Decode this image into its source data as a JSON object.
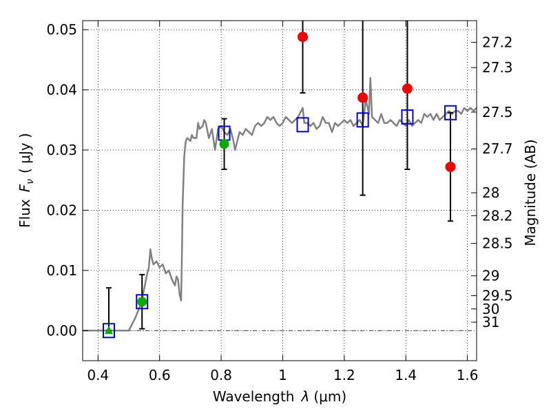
{
  "chart_data": {
    "type": "scatter",
    "xlabel_prefix": "Wavelength",
    "xlabel_symbol": "λ",
    "xlabel_unit": "(μm)",
    "ylabel_prefix": "Flux",
    "ylabel_symbol": "F",
    "ylabel_subscript": "ν",
    "ylabel_unit": "( μJy )",
    "y2label": "Magnitude (AB)",
    "xlim": [
      0.35,
      1.63
    ],
    "ylim": [
      -0.005,
      0.0515
    ],
    "xticks": [
      0.4,
      0.6,
      0.8,
      1.0,
      1.2,
      1.4,
      1.6
    ],
    "xtick_labels": [
      "0.4",
      "0.6",
      "0.8",
      "1",
      "1.2",
      "1.4",
      "1.6"
    ],
    "yticks": [
      0.0,
      0.01,
      0.02,
      0.03,
      0.04,
      0.05
    ],
    "ytick_labels": [
      "0.00",
      "0.01",
      "0.02",
      "0.03",
      "0.04",
      "0.05"
    ],
    "y2ticks": [
      {
        "label": "27.2",
        "flux": 0.0479
      },
      {
        "label": "27.3",
        "flux": 0.0437
      },
      {
        "label": "27.5",
        "flux": 0.0363
      },
      {
        "label": "27.7",
        "flux": 0.0302
      },
      {
        "label": "28",
        "flux": 0.0229
      },
      {
        "label": "28.2",
        "flux": 0.0191
      },
      {
        "label": "28.5",
        "flux": 0.0145
      },
      {
        "label": "29",
        "flux": 0.0091
      },
      {
        "label": "29.5",
        "flux": 0.0058
      },
      {
        "label": "30",
        "flux": 0.0036
      },
      {
        "label": "31",
        "flux": 0.0014
      }
    ],
    "grid": true,
    "zero_line": true,
    "colors": {
      "model": "#808080",
      "model_points": "#0000cc",
      "detections": "#00aa00",
      "upper_limits": "#ee0000",
      "errorbars": "#000000"
    },
    "series": [
      {
        "name": "model_spectrum",
        "style": "line",
        "x": [
          0.35,
          0.4,
          0.45,
          0.5,
          0.52,
          0.54,
          0.55,
          0.56,
          0.565,
          0.57,
          0.575,
          0.58,
          0.59,
          0.6,
          0.61,
          0.62,
          0.63,
          0.64,
          0.65,
          0.655,
          0.66,
          0.665,
          0.67,
          0.672,
          0.675,
          0.68,
          0.685,
          0.69,
          0.7,
          0.705,
          0.71,
          0.72,
          0.725,
          0.73,
          0.74,
          0.745,
          0.75,
          0.76,
          0.77,
          0.78,
          0.79,
          0.8,
          0.81,
          0.82,
          0.83,
          0.84,
          0.845,
          0.85,
          0.86,
          0.87,
          0.88,
          0.89,
          0.9,
          0.91,
          0.92,
          0.93,
          0.94,
          0.95,
          0.96,
          0.97,
          0.98,
          0.99,
          1.0,
          1.01,
          1.02,
          1.03,
          1.04,
          1.05,
          1.06,
          1.065,
          1.07,
          1.08,
          1.09,
          1.1,
          1.11,
          1.12,
          1.13,
          1.14,
          1.15,
          1.16,
          1.17,
          1.18,
          1.19,
          1.2,
          1.21,
          1.22,
          1.23,
          1.24,
          1.25,
          1.26,
          1.27,
          1.28,
          1.285,
          1.29,
          1.3,
          1.31,
          1.32,
          1.33,
          1.34,
          1.35,
          1.36,
          1.37,
          1.38,
          1.39,
          1.4,
          1.41,
          1.42,
          1.43,
          1.44,
          1.45,
          1.46,
          1.47,
          1.48,
          1.49,
          1.5,
          1.51,
          1.52,
          1.53,
          1.54,
          1.55,
          1.56,
          1.57,
          1.58,
          1.59,
          1.6,
          1.61,
          1.62,
          1.63
        ],
        "y": [
          0.0,
          0.0,
          0.0,
          0.0,
          0.002,
          0.0045,
          0.007,
          0.0095,
          0.0105,
          0.0135,
          0.012,
          0.011,
          0.0115,
          0.0105,
          0.011,
          0.0095,
          0.01,
          0.0085,
          0.0075,
          0.009,
          0.0085,
          0.006,
          0.005,
          0.011,
          0.021,
          0.029,
          0.0315,
          0.032,
          0.0315,
          0.0325,
          0.032,
          0.032,
          0.0345,
          0.0335,
          0.034,
          0.035,
          0.0345,
          0.032,
          0.0335,
          0.03,
          0.0335,
          0.034,
          0.033,
          0.0325,
          0.0335,
          0.0315,
          0.03,
          0.031,
          0.033,
          0.0325,
          0.0335,
          0.033,
          0.0325,
          0.034,
          0.0345,
          0.034,
          0.0345,
          0.0355,
          0.035,
          0.0355,
          0.0345,
          0.034,
          0.0345,
          0.0355,
          0.035,
          0.0345,
          0.035,
          0.0355,
          0.0365,
          0.037,
          0.0345,
          0.0345,
          0.034,
          0.0345,
          0.0335,
          0.034,
          0.0355,
          0.0345,
          0.0345,
          0.033,
          0.0345,
          0.034,
          0.0345,
          0.035,
          0.0345,
          0.035,
          0.034,
          0.0345,
          0.035,
          0.034,
          0.0385,
          0.036,
          0.042,
          0.0355,
          0.035,
          0.0345,
          0.036,
          0.0345,
          0.0345,
          0.035,
          0.0345,
          0.034,
          0.035,
          0.0345,
          0.034,
          0.035,
          0.034,
          0.0345,
          0.035,
          0.0345,
          0.036,
          0.0355,
          0.036,
          0.035,
          0.036,
          0.035,
          0.0355,
          0.036,
          0.0365,
          0.036,
          0.0365,
          0.0365,
          0.036,
          0.037,
          0.0365,
          0.037,
          0.0365,
          0.037
        ]
      },
      {
        "name": "model_photometry",
        "style": "open-square",
        "x": [
          0.435,
          0.543,
          0.81,
          1.065,
          1.26,
          1.405,
          1.545
        ],
        "y": [
          0.0,
          0.0048,
          0.0328,
          0.0342,
          0.035,
          0.0355,
          0.0362
        ]
      },
      {
        "name": "detections",
        "style": "filled-circle",
        "x": [
          0.543,
          0.81
        ],
        "y": [
          0.0048,
          0.031
        ],
        "err_low": [
          0.0003,
          0.0268
        ],
        "err_high": [
          0.0093,
          0.0352
        ]
      },
      {
        "name": "non_detection_triangle",
        "style": "filled-triangle",
        "x": [
          0.435
        ],
        "y": [
          0.0
        ],
        "err_low": [
          0.0
        ],
        "err_high": [
          0.0071
        ]
      },
      {
        "name": "upper_limits",
        "style": "filled-circle",
        "x": [
          1.065,
          1.26,
          1.405,
          1.545
        ],
        "y": [
          0.0488,
          0.0387,
          0.0402,
          0.0272
        ],
        "err_low": [
          0.0395,
          0.0225,
          0.0268,
          0.0182
        ],
        "err_high": [
          0.0515,
          0.0515,
          0.0515,
          0.0362
        ]
      }
    ]
  }
}
